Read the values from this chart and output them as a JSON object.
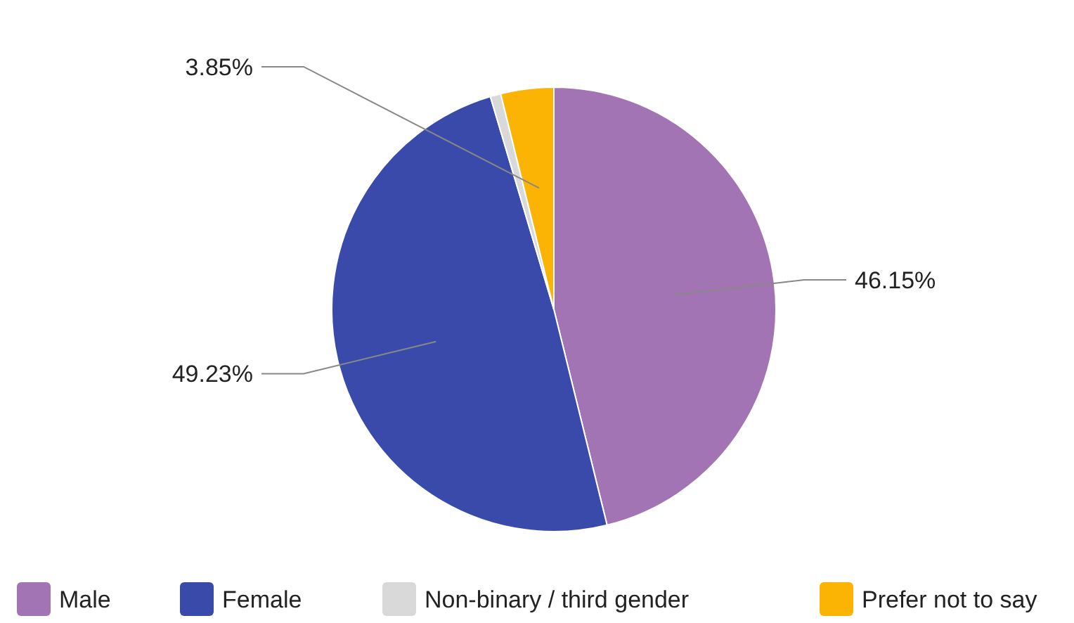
{
  "chart_data": {
    "type": "pie",
    "categories": [
      "Male",
      "Female",
      "Non-binary / third gender",
      "Prefer not to say"
    ],
    "values": [
      46.15,
      49.23,
      0.77,
      3.85
    ],
    "colors": [
      "#a374b4",
      "#3a4aab",
      "#d9d9d9",
      "#fbb404"
    ],
    "value_labels": [
      "46.15%",
      "49.23%",
      null,
      "3.85%"
    ],
    "legend": "bottom"
  }
}
